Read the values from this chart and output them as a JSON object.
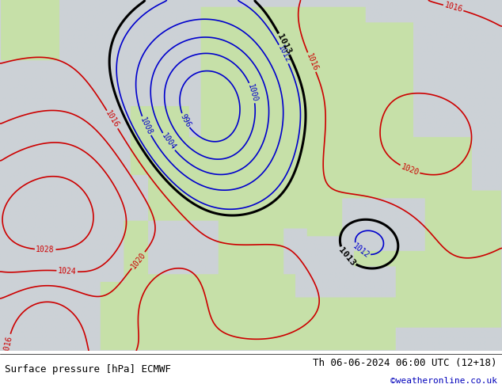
{
  "title_left": "Surface pressure [hPa] ECMWF",
  "title_right": "Th 06-06-2024 06:00 UTC (12+18)",
  "watermark": "©weatheronline.co.uk",
  "ocean_color": [
    0.8,
    0.82,
    0.84
  ],
  "land_color": [
    0.78,
    0.88,
    0.66
  ],
  "contour_low_color": "#0000cc",
  "contour_high_color": "#cc0000",
  "contour_key_color": "#000000",
  "label_fontsize": 7,
  "title_fontsize": 9,
  "watermark_color": "#0000bb",
  "figsize": [
    6.34,
    4.9
  ],
  "dpi": 100,
  "lon_min": -30,
  "lon_max": 55,
  "lat_min": 27,
  "lat_max": 73
}
